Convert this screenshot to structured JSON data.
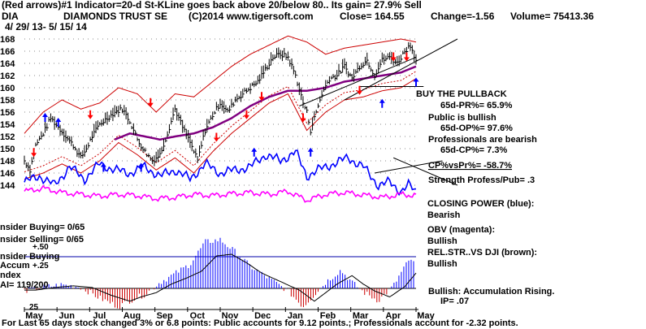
{
  "header": {
    "line1": "(Red arrows)#1 Indicator=20-d St-KLine goes back above 20/below 80.. Its gain= 27.9% Sell",
    "ticker": "DIA",
    "name": "DIAMONDS TRUST SE",
    "copyright": "(C)2014 www.tigersoft.com",
    "close": "Close=   164.55",
    "change": "Change=-1.56",
    "volume": "Volume=  75413.36",
    "date_range": "4/ 29/ 13- 5/ 15/ 14"
  },
  "annotations": {
    "buy_pullback": "BUY THE PULLBACK",
    "pr": "65d-PR%= 65.9%",
    "public_bullish": "Public is bullish",
    "op": "65d-OP%= 97.6%",
    "prof_bearish": "Professionals are bearish",
    "cp": "65d-CP%= 7.3%",
    "cpvspr": "CP%vsPr%= -58.7%",
    "strength": "Strength Profess/Pub= .3",
    "closing_power": "CLOSING POWER (blue):",
    "closing_power_val": "Bearish",
    "obv": "OBV (magenta):",
    "obv_val": "Bullish",
    "relstr": "REL.STR..VS DJI (brown):",
    "relstr_val": "Bullish",
    "accum": "Bullish: Accumulation Rising.",
    "ip": "IP=  .07"
  },
  "left_labels": {
    "insider_buying": "nsider Buying= 0/65",
    "insider_selling": "nsider Selling= 0/65",
    "plus50": "+.50",
    "insider_buying2": "nsider Buying",
    "accum": "Accum",
    "plus25": "+.25",
    "index": "ndex",
    "ai": "AI= 119/200",
    "low25": "25"
  },
  "footer": "For Last 65 days stock changed  3% or  6.8 points:  Public accounts for  9.12 points.;  Professionals account for -2.32 points.",
  "colors": {
    "price": "#000000",
    "band": "#cc0000",
    "ma": "#800080",
    "closing_power": "#0000ff",
    "obv": "#ff00ff",
    "accum_pos": "#0000ff",
    "accum_neg": "#cc0000",
    "up_arrow": "#0000ff",
    "down_arrow": "#ff0000"
  },
  "chart_data": {
    "type": "line",
    "title": "DIAMONDS TRUST SE",
    "ylabel": "",
    "xlabel": "",
    "ylim": [
      142,
      168
    ],
    "y_ticks": [
      144,
      146,
      148,
      150,
      152,
      154,
      156,
      158,
      160,
      162,
      164,
      166,
      168
    ],
    "month_labels": [
      "May",
      "Jun",
      "Jul",
      "Aug",
      "Sep",
      "Oct",
      "Nov",
      "Dec",
      "Jan",
      "Feb",
      "Mar",
      "Apr",
      "May"
    ],
    "price_anchors": [
      [
        0,
        148.0
      ],
      [
        3,
        146.5
      ],
      [
        6,
        150.5
      ],
      [
        10,
        152.5
      ],
      [
        14,
        155.0
      ],
      [
        18,
        153.5
      ],
      [
        22,
        152.0
      ],
      [
        26,
        150.5
      ],
      [
        30,
        148.5
      ],
      [
        33,
        150.0
      ],
      [
        36,
        152.0
      ],
      [
        40,
        154.0
      ],
      [
        44,
        155.0
      ],
      [
        48,
        156.0
      ],
      [
        52,
        156.5
      ],
      [
        56,
        154.5
      ],
      [
        60,
        151.5
      ],
      [
        64,
        149.5
      ],
      [
        68,
        148.0
      ],
      [
        72,
        149.0
      ],
      [
        76,
        152.5
      ],
      [
        80,
        156.5
      ],
      [
        84,
        153.5
      ],
      [
        88,
        151.0
      ],
      [
        92,
        148.0
      ],
      [
        96,
        153.0
      ],
      [
        100,
        155.5
      ],
      [
        104,
        157.5
      ],
      [
        108,
        156.0
      ],
      [
        112,
        158.0
      ],
      [
        116,
        159.0
      ],
      [
        120,
        160.0
      ],
      [
        124,
        161.0
      ],
      [
        128,
        163.0
      ],
      [
        132,
        165.0
      ],
      [
        136,
        165.5
      ],
      [
        140,
        165.0
      ],
      [
        144,
        162.0
      ],
      [
        148,
        157.5
      ],
      [
        150,
        156.0
      ],
      [
        152,
        153.0
      ],
      [
        154,
        155.0
      ],
      [
        158,
        159.0
      ],
      [
        162,
        161.5
      ],
      [
        166,
        162.0
      ],
      [
        170,
        163.5
      ],
      [
        174,
        161.5
      ],
      [
        178,
        163.5
      ],
      [
        182,
        164.5
      ],
      [
        186,
        162.0
      ],
      [
        190,
        164.5
      ],
      [
        194,
        165.0
      ],
      [
        198,
        164.0
      ],
      [
        202,
        166.0
      ],
      [
        205,
        167.0
      ],
      [
        208,
        164.55
      ]
    ],
    "ma_anchors": [
      [
        48,
        151.5
      ],
      [
        56,
        152.5
      ],
      [
        64,
        152.0
      ],
      [
        72,
        151.5
      ],
      [
        80,
        152.0
      ],
      [
        90,
        152.5
      ],
      [
        100,
        153.5
      ],
      [
        110,
        155.0
      ],
      [
        120,
        157.0
      ],
      [
        130,
        158.5
      ],
      [
        140,
        159.5
      ],
      [
        150,
        159.5
      ],
      [
        160,
        160.0
      ],
      [
        170,
        161.0
      ],
      [
        180,
        161.5
      ],
      [
        190,
        162.0
      ],
      [
        200,
        162.5
      ],
      [
        208,
        163.5
      ]
    ],
    "upper_band_anchors": [
      [
        0,
        152.5
      ],
      [
        10,
        156.0
      ],
      [
        20,
        158.0
      ],
      [
        30,
        156.5
      ],
      [
        40,
        157.5
      ],
      [
        50,
        160.0
      ],
      [
        60,
        159.0
      ],
      [
        70,
        156.0
      ],
      [
        80,
        159.0
      ],
      [
        90,
        158.5
      ],
      [
        100,
        161.0
      ],
      [
        110,
        163.5
      ],
      [
        120,
        165.5
      ],
      [
        130,
        167.0
      ],
      [
        140,
        168.5
      ],
      [
        150,
        167.5
      ],
      [
        160,
        165.5
      ],
      [
        170,
        166.5
      ],
      [
        180,
        167.0
      ],
      [
        190,
        167.5
      ],
      [
        200,
        168.0
      ],
      [
        208,
        167.5
      ]
    ],
    "lower_band_anchors": [
      [
        0,
        145.0
      ],
      [
        10,
        146.0
      ],
      [
        20,
        147.5
      ],
      [
        30,
        146.0
      ],
      [
        40,
        148.0
      ],
      [
        50,
        151.0
      ],
      [
        60,
        149.0
      ],
      [
        70,
        146.5
      ],
      [
        80,
        148.5
      ],
      [
        90,
        146.0
      ],
      [
        100,
        149.5
      ],
      [
        110,
        152.5
      ],
      [
        120,
        155.0
      ],
      [
        130,
        157.5
      ],
      [
        140,
        159.0
      ],
      [
        150,
        153.0
      ],
      [
        160,
        156.0
      ],
      [
        170,
        158.0
      ],
      [
        180,
        158.5
      ],
      [
        190,
        159.5
      ],
      [
        200,
        160.0
      ],
      [
        208,
        161.5
      ]
    ],
    "closing_power_anchors": [
      [
        0,
        144.5
      ],
      [
        8,
        145.5
      ],
      [
        16,
        144.0
      ],
      [
        24,
        147.0
      ],
      [
        32,
        145.0
      ],
      [
        40,
        147.5
      ],
      [
        48,
        146.5
      ],
      [
        56,
        146.0
      ],
      [
        64,
        147.0
      ],
      [
        72,
        145.5
      ],
      [
        80,
        146.5
      ],
      [
        88,
        145.0
      ],
      [
        96,
        147.5
      ],
      [
        104,
        146.0
      ],
      [
        112,
        146.5
      ],
      [
        120,
        147.0
      ],
      [
        128,
        149.0
      ],
      [
        136,
        148.0
      ],
      [
        144,
        149.5
      ],
      [
        150,
        145.5
      ],
      [
        156,
        146.5
      ],
      [
        164,
        147.5
      ],
      [
        172,
        148.5
      ],
      [
        180,
        147.0
      ],
      [
        188,
        144.0
      ],
      [
        194,
        144.5
      ],
      [
        200,
        143.0
      ],
      [
        204,
        144.0
      ],
      [
        208,
        143.0
      ]
    ],
    "obv_anchors": [
      [
        0,
        143.0
      ],
      [
        10,
        143.5
      ],
      [
        20,
        142.8
      ],
      [
        30,
        142.5
      ],
      [
        40,
        142.2
      ],
      [
        50,
        142.5
      ],
      [
        60,
        142.3
      ],
      [
        70,
        141.8
      ],
      [
        80,
        142.0
      ],
      [
        90,
        142.5
      ],
      [
        100,
        142.3
      ],
      [
        110,
        142.6
      ],
      [
        120,
        142.8
      ],
      [
        130,
        142.5
      ],
      [
        140,
        143.0
      ],
      [
        150,
        141.5
      ],
      [
        160,
        142.5
      ],
      [
        170,
        142.8
      ],
      [
        180,
        142.4
      ],
      [
        190,
        142.0
      ],
      [
        200,
        142.5
      ],
      [
        208,
        142.3
      ]
    ],
    "accum_anchors": [
      [
        0,
        -0.02
      ],
      [
        10,
        0.01
      ],
      [
        20,
        0.03
      ],
      [
        30,
        0.01
      ],
      [
        40,
        -0.08
      ],
      [
        50,
        -0.15
      ],
      [
        56,
        -0.1
      ],
      [
        64,
        -0.05
      ],
      [
        72,
        0.05
      ],
      [
        80,
        0.12
      ],
      [
        88,
        0.2
      ],
      [
        96,
        0.38
      ],
      [
        104,
        0.4
      ],
      [
        112,
        0.3
      ],
      [
        120,
        0.18
      ],
      [
        130,
        0.08
      ],
      [
        140,
        -0.02
      ],
      [
        148,
        -0.15
      ],
      [
        154,
        -0.05
      ],
      [
        160,
        0.05
      ],
      [
        168,
        0.15
      ],
      [
        174,
        0.05
      ],
      [
        180,
        -0.03
      ],
      [
        188,
        -0.1
      ],
      [
        196,
        0.02
      ],
      [
        202,
        0.18
      ],
      [
        206,
        0.25
      ],
      [
        208,
        0.12
      ]
    ],
    "up_arrows": [
      [
        11,
        155.2
      ],
      [
        18,
        154.4
      ],
      [
        42,
        147.0
      ],
      [
        62,
        147.0
      ],
      [
        122,
        149.5
      ],
      [
        152,
        149.5
      ],
      [
        190,
        157.5
      ],
      [
        208,
        161.0
      ]
    ],
    "down_arrows": [
      [
        5,
        149.3
      ],
      [
        35,
        155.5
      ],
      [
        67,
        157.5
      ],
      [
        102,
        151.8
      ],
      [
        118,
        155.5
      ],
      [
        126,
        158.5
      ],
      [
        148,
        155.0
      ],
      [
        178,
        159.5
      ],
      [
        196,
        165.0
      ],
      [
        203,
        165.0
      ]
    ],
    "trend_lines": [
      [
        [
          146,
          157.0
        ],
        [
          208,
          165.0
        ]
      ],
      [
        [
          170,
          158.0
        ],
        [
          230,
          168.0
        ]
      ],
      [
        [
          178,
          160.2
        ],
        [
          212,
          160.2
        ]
      ],
      [
        [
          196,
          148.5
        ],
        [
          230,
          144.0
        ]
      ],
      [
        [
          186,
          146.0
        ],
        [
          222,
          148.0
        ]
      ]
    ]
  }
}
